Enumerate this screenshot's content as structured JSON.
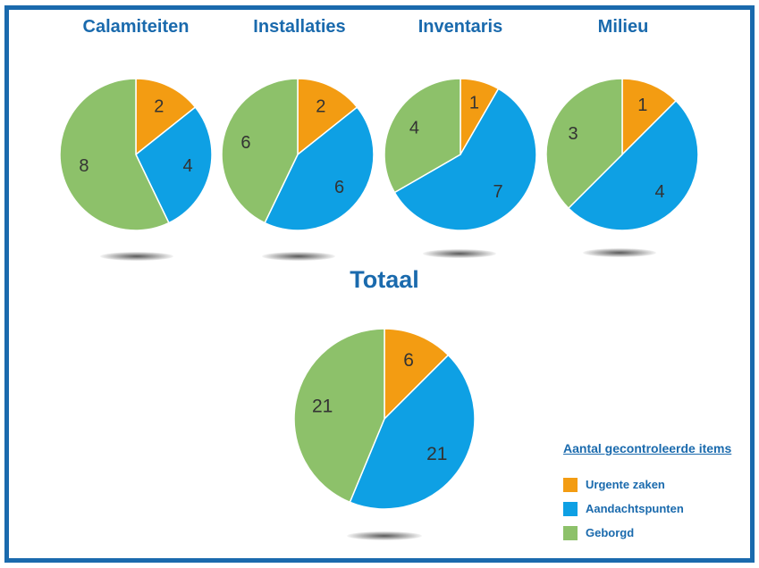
{
  "colors": {
    "border": "#1a6aad",
    "title": "#1a6aad",
    "urgent": "#f39c12",
    "attention": "#0ea0e4",
    "secured": "#8dc16a"
  },
  "legend": {
    "title": "Aantal gecontroleerde items",
    "items": [
      {
        "label": "Urgente zaken",
        "color": "#f39c12"
      },
      {
        "label": "Aandachtspunten",
        "color": "#0ea0e4"
      },
      {
        "label": "Geborgd",
        "color": "#8dc16a"
      }
    ]
  },
  "chart_data": [
    {
      "type": "pie",
      "title": "Calamiteiten",
      "categories": [
        "Urgente zaken",
        "Aandachtspunten",
        "Geborgd"
      ],
      "values": [
        2,
        4,
        8
      ]
    },
    {
      "type": "pie",
      "title": "Installaties",
      "categories": [
        "Urgente zaken",
        "Aandachtspunten",
        "Geborgd"
      ],
      "values": [
        2,
        6,
        6
      ]
    },
    {
      "type": "pie",
      "title": "Inventaris",
      "categories": [
        "Urgente zaken",
        "Aandachtspunten",
        "Geborgd"
      ],
      "values": [
        1,
        7,
        4
      ]
    },
    {
      "type": "pie",
      "title": "Milieu",
      "categories": [
        "Urgente zaken",
        "Aandachtspunten",
        "Geborgd"
      ],
      "values": [
        1,
        4,
        3
      ]
    },
    {
      "type": "pie",
      "title": "Totaal",
      "categories": [
        "Urgente zaken",
        "Aandachtspunten",
        "Geborgd"
      ],
      "values": [
        6,
        21,
        21
      ]
    }
  ]
}
